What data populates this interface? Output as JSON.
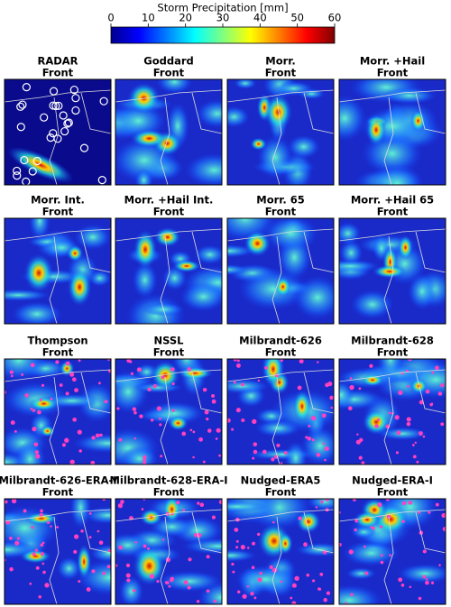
{
  "colorbar": {
    "label": "Storm Precipitation [mm]",
    "lim": [
      0,
      60
    ],
    "ticks": [
      0,
      10,
      20,
      30,
      40,
      50,
      60
    ]
  },
  "panels": [
    {
      "title": "RADAR",
      "subtitle": "Front"
    },
    {
      "title": "Goddard",
      "subtitle": "Front"
    },
    {
      "title": "Morr.",
      "subtitle": "Front"
    },
    {
      "title": "Morr. +Hail",
      "subtitle": "Front"
    },
    {
      "title": "Morr. Int.",
      "subtitle": "Front"
    },
    {
      "title": "Morr. +Hail Int.",
      "subtitle": "Front"
    },
    {
      "title": "Morr. 65",
      "subtitle": "Front"
    },
    {
      "title": "Morr. +Hail 65",
      "subtitle": "Front"
    },
    {
      "title": "Thompson",
      "subtitle": "Front"
    },
    {
      "title": "NSSL",
      "subtitle": "Front"
    },
    {
      "title": "Milbrandt-626",
      "subtitle": "Front"
    },
    {
      "title": "Milbrandt-628",
      "subtitle": "Front"
    },
    {
      "title": "Milbrandt-626-ERA-I",
      "subtitle": "Front"
    },
    {
      "title": "Milbrandt-628-ERA-I",
      "subtitle": "Front"
    },
    {
      "title": "Nudged-ERA5",
      "subtitle": "Front"
    },
    {
      "title": "Nudged-ERA-I",
      "subtitle": "Front"
    }
  ]
}
